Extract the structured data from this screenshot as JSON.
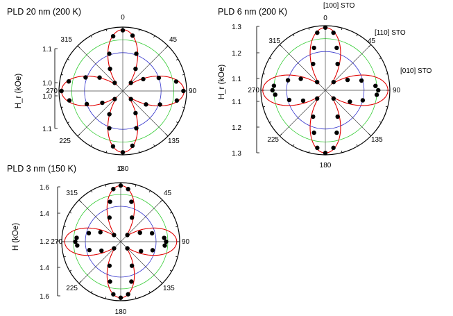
{
  "chart_data": [
    {
      "type": "scatter",
      "subtype": "polar",
      "title": "PLD 20 nm (200 K)",
      "ylabel": "H_r (kOe)",
      "angle_labels": [
        "0",
        "45",
        "90",
        "135",
        "180",
        "225",
        "270",
        "315"
      ],
      "radial_tick_labels": [
        "1.1",
        "1.0",
        "1.0",
        "1.1"
      ],
      "annotations": [],
      "series": [
        {
          "points_deg_r": [
            [
              0,
              0.95
            ],
            [
              10,
              0.88
            ],
            [
              20,
              0.62
            ],
            [
              30,
              0.4
            ],
            [
              45,
              0.18
            ],
            [
              60,
              0.37
            ],
            [
              70,
              0.6
            ],
            [
              80,
              0.85
            ],
            [
              90,
              0.95
            ],
            [
              100,
              0.86
            ],
            [
              110,
              0.62
            ],
            [
              120,
              0.42
            ],
            [
              135,
              0.18
            ],
            [
              150,
              0.4
            ],
            [
              160,
              0.62
            ],
            [
              170,
              0.87
            ],
            [
              180,
              0.96
            ],
            [
              190,
              0.88
            ],
            [
              200,
              0.62
            ],
            [
              210,
              0.42
            ],
            [
              225,
              0.18
            ],
            [
              240,
              0.37
            ],
            [
              250,
              0.6
            ],
            [
              260,
              0.85
            ],
            [
              270,
              0.96
            ],
            [
              280,
              0.86
            ],
            [
              290,
              0.62
            ],
            [
              300,
              0.42
            ],
            [
              315,
              0.18
            ],
            [
              330,
              0.4
            ],
            [
              340,
              0.62
            ],
            [
              350,
              0.87
            ]
          ],
          "fit": "four-fold"
        }
      ]
    },
    {
      "type": "scatter",
      "subtype": "polar",
      "title": "PLD 6 nm (200 K)",
      "ylabel": "H_r (kOe)",
      "angle_labels": [
        "0",
        "45",
        "90",
        "135",
        "180",
        "225",
        "270",
        "315"
      ],
      "radial_tick_labels": [
        "1.3",
        "1.2",
        "1.1",
        "1.1",
        "1.2",
        "1.3"
      ],
      "annotations": [
        "[100] STO",
        "[110] STO",
        "[010] STO"
      ],
      "series": [
        {
          "points_deg_r": [
            [
              0,
              0.97
            ],
            [
              8,
              0.9
            ],
            [
              15,
              0.68
            ],
            [
              25,
              0.45
            ],
            [
              45,
              0.18
            ],
            [
              65,
              0.38
            ],
            [
              75,
              0.58
            ],
            [
              85,
              0.78
            ],
            [
              90,
              0.82
            ],
            [
              95,
              0.8
            ],
            [
              105,
              0.6
            ],
            [
              115,
              0.42
            ],
            [
              135,
              0.18
            ],
            [
              155,
              0.45
            ],
            [
              165,
              0.68
            ],
            [
              172,
              0.9
            ],
            [
              180,
              0.97
            ],
            [
              188,
              0.9
            ],
            [
              195,
              0.68
            ],
            [
              205,
              0.45
            ],
            [
              225,
              0.18
            ],
            [
              245,
              0.38
            ],
            [
              255,
              0.58
            ],
            [
              265,
              0.78
            ],
            [
              270,
              0.82
            ],
            [
              275,
              0.8
            ],
            [
              285,
              0.6
            ],
            [
              295,
              0.42
            ],
            [
              315,
              0.18
            ],
            [
              335,
              0.45
            ],
            [
              345,
              0.68
            ],
            [
              352,
              0.9
            ]
          ],
          "fit": "four-fold"
        }
      ]
    },
    {
      "type": "scatter",
      "subtype": "polar",
      "title": "PLD 3 nm (150 K)",
      "ylabel": "H (kOe)",
      "angle_labels": [
        "0",
        "45",
        "90",
        "135",
        "180",
        "225",
        "270",
        "315"
      ],
      "radial_tick_labels": [
        "1.6",
        "1.4",
        "1.2",
        "1.4",
        "1.6"
      ],
      "annotations": [],
      "series": [
        {
          "points_deg_r": [
            [
              0,
              0.95
            ],
            [
              8,
              0.9
            ],
            [
              15,
              0.7
            ],
            [
              25,
              0.45
            ],
            [
              45,
              0.16
            ],
            [
              65,
              0.36
            ],
            [
              75,
              0.55
            ],
            [
              85,
              0.74
            ],
            [
              90,
              0.77
            ],
            [
              95,
              0.75
            ],
            [
              105,
              0.56
            ],
            [
              115,
              0.38
            ],
            [
              135,
              0.16
            ],
            [
              155,
              0.45
            ],
            [
              165,
              0.7
            ],
            [
              172,
              0.9
            ],
            [
              180,
              0.95
            ],
            [
              188,
              0.9
            ],
            [
              195,
              0.7
            ],
            [
              205,
              0.45
            ],
            [
              225,
              0.16
            ],
            [
              245,
              0.36
            ],
            [
              255,
              0.55
            ],
            [
              265,
              0.74
            ],
            [
              270,
              0.77
            ],
            [
              275,
              0.75
            ],
            [
              285,
              0.56
            ],
            [
              295,
              0.38
            ],
            [
              315,
              0.16
            ],
            [
              335,
              0.45
            ],
            [
              345,
              0.7
            ],
            [
              352,
              0.9
            ]
          ],
          "fit": "four-fold"
        }
      ]
    }
  ],
  "colors": {
    "fit_line": "#e00000",
    "points": "#000000",
    "inner_circle": "#3333cc",
    "outer_circle": "#33cc33",
    "spoke": "#444444"
  }
}
